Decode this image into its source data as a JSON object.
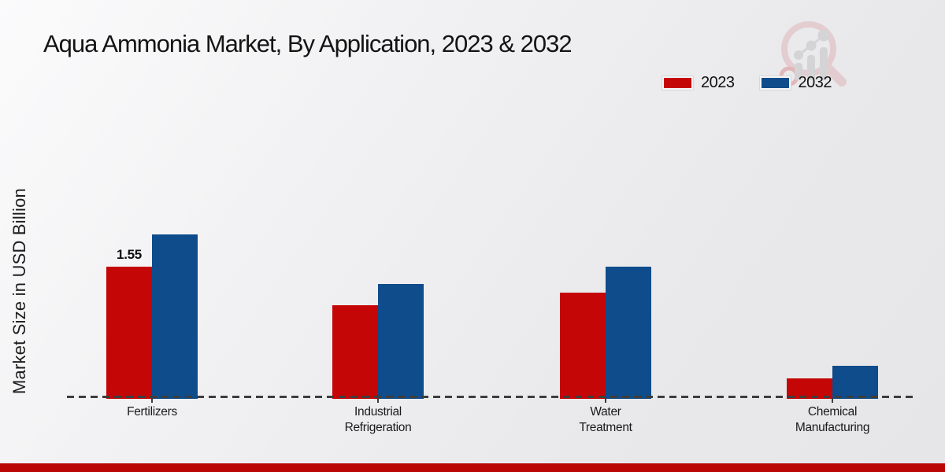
{
  "header": {
    "title": "Aqua Ammonia Market, By Application, 2023 & 2032"
  },
  "y_axis": {
    "label": "Market Size in USD Billion"
  },
  "legend": {
    "items": [
      {
        "label": "2023",
        "color": "#c50606"
      },
      {
        "label": "2032",
        "color": "#0e4c8b"
      }
    ]
  },
  "chart_data": {
    "type": "bar",
    "title": "Aqua Ammonia Market, By Application, 2023 & 2032",
    "categories": [
      "Fertilizers",
      "Industrial Refrigeration",
      "Water Treatment",
      "Chemical Manufacturing"
    ],
    "series": [
      {
        "name": "2023",
        "color": "#c50606",
        "values": [
          1.55,
          1.1,
          1.25,
          0.24
        ]
      },
      {
        "name": "2032",
        "color": "#0e4c8b",
        "values": [
          1.93,
          1.35,
          1.55,
          0.39
        ]
      }
    ],
    "data_labels": [
      {
        "series_index": 0,
        "category_index": 0,
        "text": "1.55"
      }
    ],
    "xlabel": "",
    "ylabel": "Market Size in USD Billion",
    "ylim": [
      0,
      2.2
    ],
    "grid": false,
    "legend_position": "top-right",
    "baseline_style": "dashed"
  },
  "branding": {
    "logo_icon": "magnifier-bar-chart-watermark",
    "footer_bar_color": "#ba0605"
  }
}
